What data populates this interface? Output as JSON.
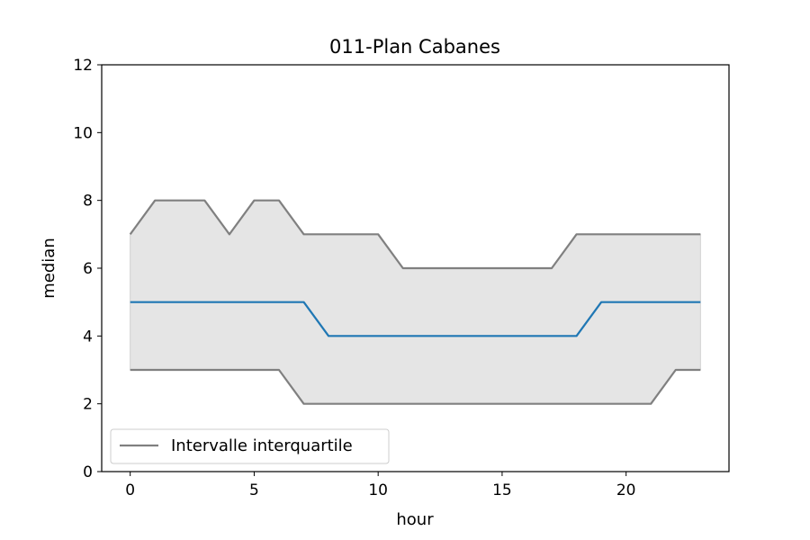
{
  "chart_data": {
    "type": "line",
    "title": "011-Plan Cabanes",
    "xlabel": "hour",
    "ylabel": "median",
    "xlim": [
      -1.15,
      24.15
    ],
    "ylim": [
      0,
      12
    ],
    "xticks": [
      0,
      5,
      10,
      15,
      20
    ],
    "yticks": [
      0,
      2,
      4,
      6,
      8,
      10,
      12
    ],
    "grid": false,
    "legend_position": "lower-left",
    "x": [
      0,
      1,
      2,
      3,
      4,
      5,
      6,
      7,
      8,
      9,
      10,
      11,
      12,
      13,
      14,
      15,
      16,
      17,
      18,
      19,
      20,
      21,
      22,
      23
    ],
    "series": [
      {
        "role": "median",
        "color": "#1f77b4",
        "values": [
          5,
          5,
          5,
          5,
          5,
          5,
          5,
          5,
          4,
          4,
          4,
          4,
          4,
          4,
          4,
          4,
          4,
          4,
          4,
          5,
          5,
          5,
          5,
          5
        ]
      },
      {
        "role": "upper-quartile",
        "color": "#808080",
        "values": [
          7,
          8,
          8,
          8,
          7,
          8,
          8,
          7,
          7,
          7,
          7,
          6,
          6,
          6,
          6,
          6,
          6,
          6,
          7,
          7,
          7,
          7,
          7,
          7
        ]
      },
      {
        "role": "lower-quartile",
        "color": "#808080",
        "values": [
          3,
          3,
          3,
          3,
          3,
          3,
          3,
          2,
          2,
          2,
          2,
          2,
          2,
          2,
          2,
          2,
          2,
          2,
          2,
          2,
          2,
          2,
          3,
          3
        ]
      }
    ],
    "band_color": "#e5e5e5",
    "legend": [
      {
        "label": "Intervalle interquartile",
        "color": "#808080"
      }
    ]
  }
}
